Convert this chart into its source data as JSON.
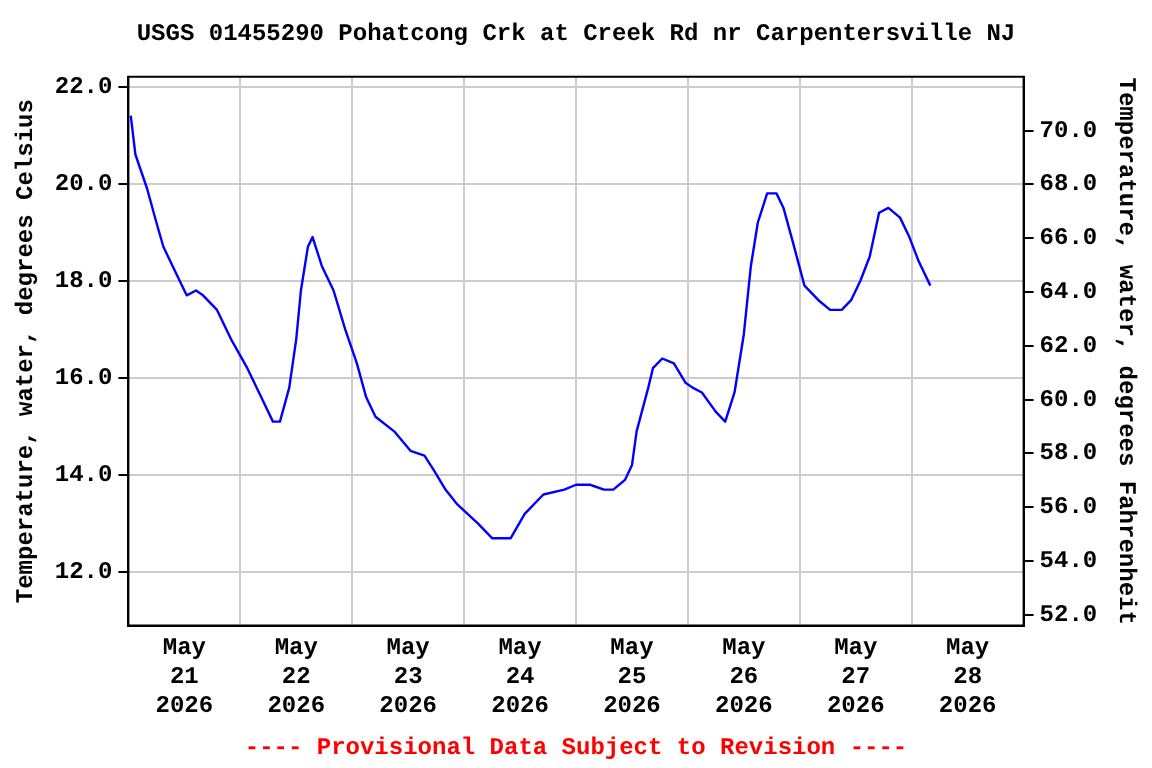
{
  "chart_data": {
    "type": "line",
    "title": "USGS 01455290 Pohatcong Crk at Creek Rd nr Carpentersville NJ",
    "ylabel": "Temperature, water, degrees Celsius",
    "y2label": "Temperature, water, degrees Fahrenheit",
    "annotations": [
      "---- Provisional Data Subject to Revision ----"
    ],
    "xlim": [
      "2026-05-21",
      "2026-05-29"
    ],
    "xticks": [
      {
        "value": "2026-05-21T12:00",
        "label": "May 21 2026"
      },
      {
        "value": "2026-05-22",
        "label": null
      },
      {
        "value": "2026-05-22T12:00",
        "label": "May 22 2026"
      },
      {
        "value": "2026-05-23",
        "label": null
      },
      {
        "value": "2026-05-23T12:00",
        "label": "May 23 2026"
      },
      {
        "value": "2026-05-24",
        "label": null
      },
      {
        "value": "2026-05-24T12:00",
        "label": "May 24 2026"
      },
      {
        "value": "2026-05-25",
        "label": null
      },
      {
        "value": "2026-05-25T12:00",
        "label": "May 25 2026"
      },
      {
        "value": "2026-05-26",
        "label": null
      },
      {
        "value": "2026-05-26T12:00",
        "label": "May 26 2026"
      },
      {
        "value": "2026-05-27",
        "label": null
      },
      {
        "value": "2026-05-27T12:00",
        "label": "May 27 2026"
      },
      {
        "value": "2026-05-28",
        "label": null
      },
      {
        "value": "2026-05-28T12:00",
        "label": "May 28 2026"
      }
    ],
    "ylim": [
      10.9,
      22.2
    ],
    "yticks": [
      {
        "value": 12,
        "label": "12.0"
      },
      {
        "value": 14,
        "label": "14.0"
      },
      {
        "value": 16,
        "label": "16.0"
      },
      {
        "value": 18,
        "label": "18.0"
      },
      {
        "value": 20,
        "label": "20.0"
      },
      {
        "value": 22,
        "label": "22.0"
      }
    ],
    "y2lim": [
      51.6,
      72.0
    ],
    "y2ticks": [
      {
        "value": 52,
        "label": "52.0"
      },
      {
        "value": 54,
        "label": "54.0"
      },
      {
        "value": 56,
        "label": "56.0"
      },
      {
        "value": 58,
        "label": "58.0"
      },
      {
        "value": 60,
        "label": "60.0"
      },
      {
        "value": 62,
        "label": "62.0"
      },
      {
        "value": 64,
        "label": "64.0"
      },
      {
        "value": 66,
        "label": "66.0"
      },
      {
        "value": 68,
        "label": "68.0"
      },
      {
        "value": 70,
        "label": "70.0"
      }
    ],
    "grid": true,
    "legend": false,
    "marker": "none",
    "line_style": "solid",
    "series": [
      {
        "color": "#0000ff",
        "x": [
          "2026-05-21T00:30",
          "2026-05-21T01:30",
          "2026-05-21T04:00",
          "2026-05-21T06:00",
          "2026-05-21T07:30",
          "2026-05-21T10:30",
          "2026-05-21T12:30",
          "2026-05-21T14:30",
          "2026-05-21T16:00",
          "2026-05-21T19:00",
          "2026-05-21T22:00",
          "2026-05-22T01:30",
          "2026-05-22T04:30",
          "2026-05-22T07:00",
          "2026-05-22T08:30",
          "2026-05-22T10:30",
          "2026-05-22T12:00",
          "2026-05-22T13:00",
          "2026-05-22T14:30",
          "2026-05-22T15:30",
          "2026-05-22T17:30",
          "2026-05-22T20:00",
          "2026-05-22T22:30",
          "2026-05-23T01:00",
          "2026-05-23T03:00",
          "2026-05-23T05:00",
          "2026-05-23T09:00",
          "2026-05-23T12:30",
          "2026-05-23T15:30",
          "2026-05-23T17:30",
          "2026-05-23T20:00",
          "2026-05-23T22:30",
          "2026-05-24T03:00",
          "2026-05-24T06:00",
          "2026-05-24T10:00",
          "2026-05-24T13:00",
          "2026-05-24T17:00",
          "2026-05-24T21:30",
          "2026-05-25T00:00",
          "2026-05-25T03:00",
          "2026-05-25T06:00",
          "2026-05-25T08:00",
          "2026-05-25T10:30",
          "2026-05-25T12:00",
          "2026-05-25T13:00",
          "2026-05-25T15:30",
          "2026-05-25T16:30",
          "2026-05-25T18:30",
          "2026-05-25T21:00",
          "2026-05-25T23:30",
          "2026-05-26T01:00",
          "2026-05-26T03:00",
          "2026-05-26T06:00",
          "2026-05-26T08:00",
          "2026-05-26T10:00",
          "2026-05-26T12:00",
          "2026-05-26T13:30",
          "2026-05-26T15:00",
          "2026-05-26T17:00",
          "2026-05-26T19:00",
          "2026-05-26T20:30",
          "2026-05-26T22:30",
          "2026-05-27T01:00",
          "2026-05-27T04:00",
          "2026-05-27T06:30",
          "2026-05-27T09:00",
          "2026-05-27T11:00",
          "2026-05-27T13:00",
          "2026-05-27T15:00",
          "2026-05-27T17:00",
          "2026-05-27T19:00",
          "2026-05-27T21:30",
          "2026-05-27T23:30",
          "2026-05-28T01:30",
          "2026-05-28T04:00"
        ],
        "values": [
          21.4,
          20.6,
          19.9,
          19.2,
          18.7,
          18.1,
          17.7,
          17.8,
          17.7,
          17.4,
          16.8,
          16.2,
          15.6,
          15.1,
          15.1,
          15.8,
          16.8,
          17.8,
          18.7,
          18.9,
          18.3,
          17.8,
          17.0,
          16.3,
          15.6,
          15.2,
          14.9,
          14.5,
          14.4,
          14.1,
          13.7,
          13.4,
          13.0,
          12.7,
          12.7,
          13.2,
          13.6,
          13.7,
          13.8,
          13.8,
          13.7,
          13.7,
          13.9,
          14.2,
          14.9,
          15.8,
          16.2,
          16.4,
          16.3,
          15.9,
          15.8,
          15.7,
          15.3,
          15.1,
          15.7,
          16.9,
          18.3,
          19.2,
          19.8,
          19.8,
          19.5,
          18.8,
          17.9,
          17.6,
          17.4,
          17.4,
          17.6,
          18.0,
          18.5,
          19.4,
          19.5,
          19.3,
          18.9,
          18.4,
          17.9
        ]
      }
    ]
  }
}
